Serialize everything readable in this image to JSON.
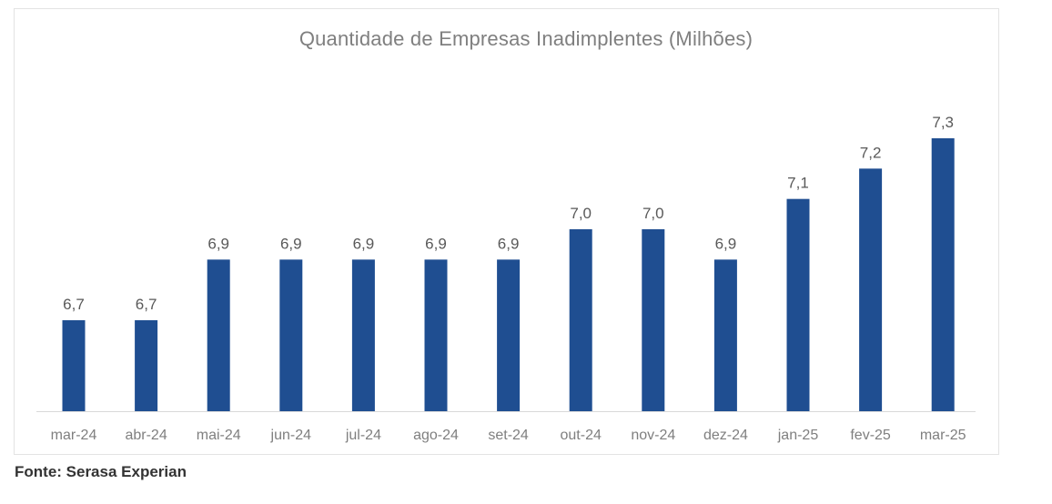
{
  "chart_data": {
    "type": "bar",
    "title": "Quantidade de Empresas Inadimplentes (Milhões)",
    "categories": [
      "mar-24",
      "abr-24",
      "mai-24",
      "jun-24",
      "jul-24",
      "ago-24",
      "set-24",
      "out-24",
      "nov-24",
      "dez-24",
      "jan-25",
      "fev-25",
      "mar-25"
    ],
    "values": [
      6.7,
      6.7,
      6.9,
      6.9,
      6.9,
      6.9,
      6.9,
      7.0,
      7.0,
      6.9,
      7.1,
      7.2,
      7.3
    ],
    "value_labels": [
      "6,7",
      "6,7",
      "6,9",
      "6,9",
      "6,9",
      "6,9",
      "6,9",
      "7,0",
      "7,0",
      "6,9",
      "7,1",
      "7,2",
      "7,3"
    ],
    "ylim": [
      6.4,
      7.3
    ],
    "grid": false,
    "legend": "none",
    "bar_color": "#1f4e91"
  },
  "source": "Fonte: Serasa Experian"
}
